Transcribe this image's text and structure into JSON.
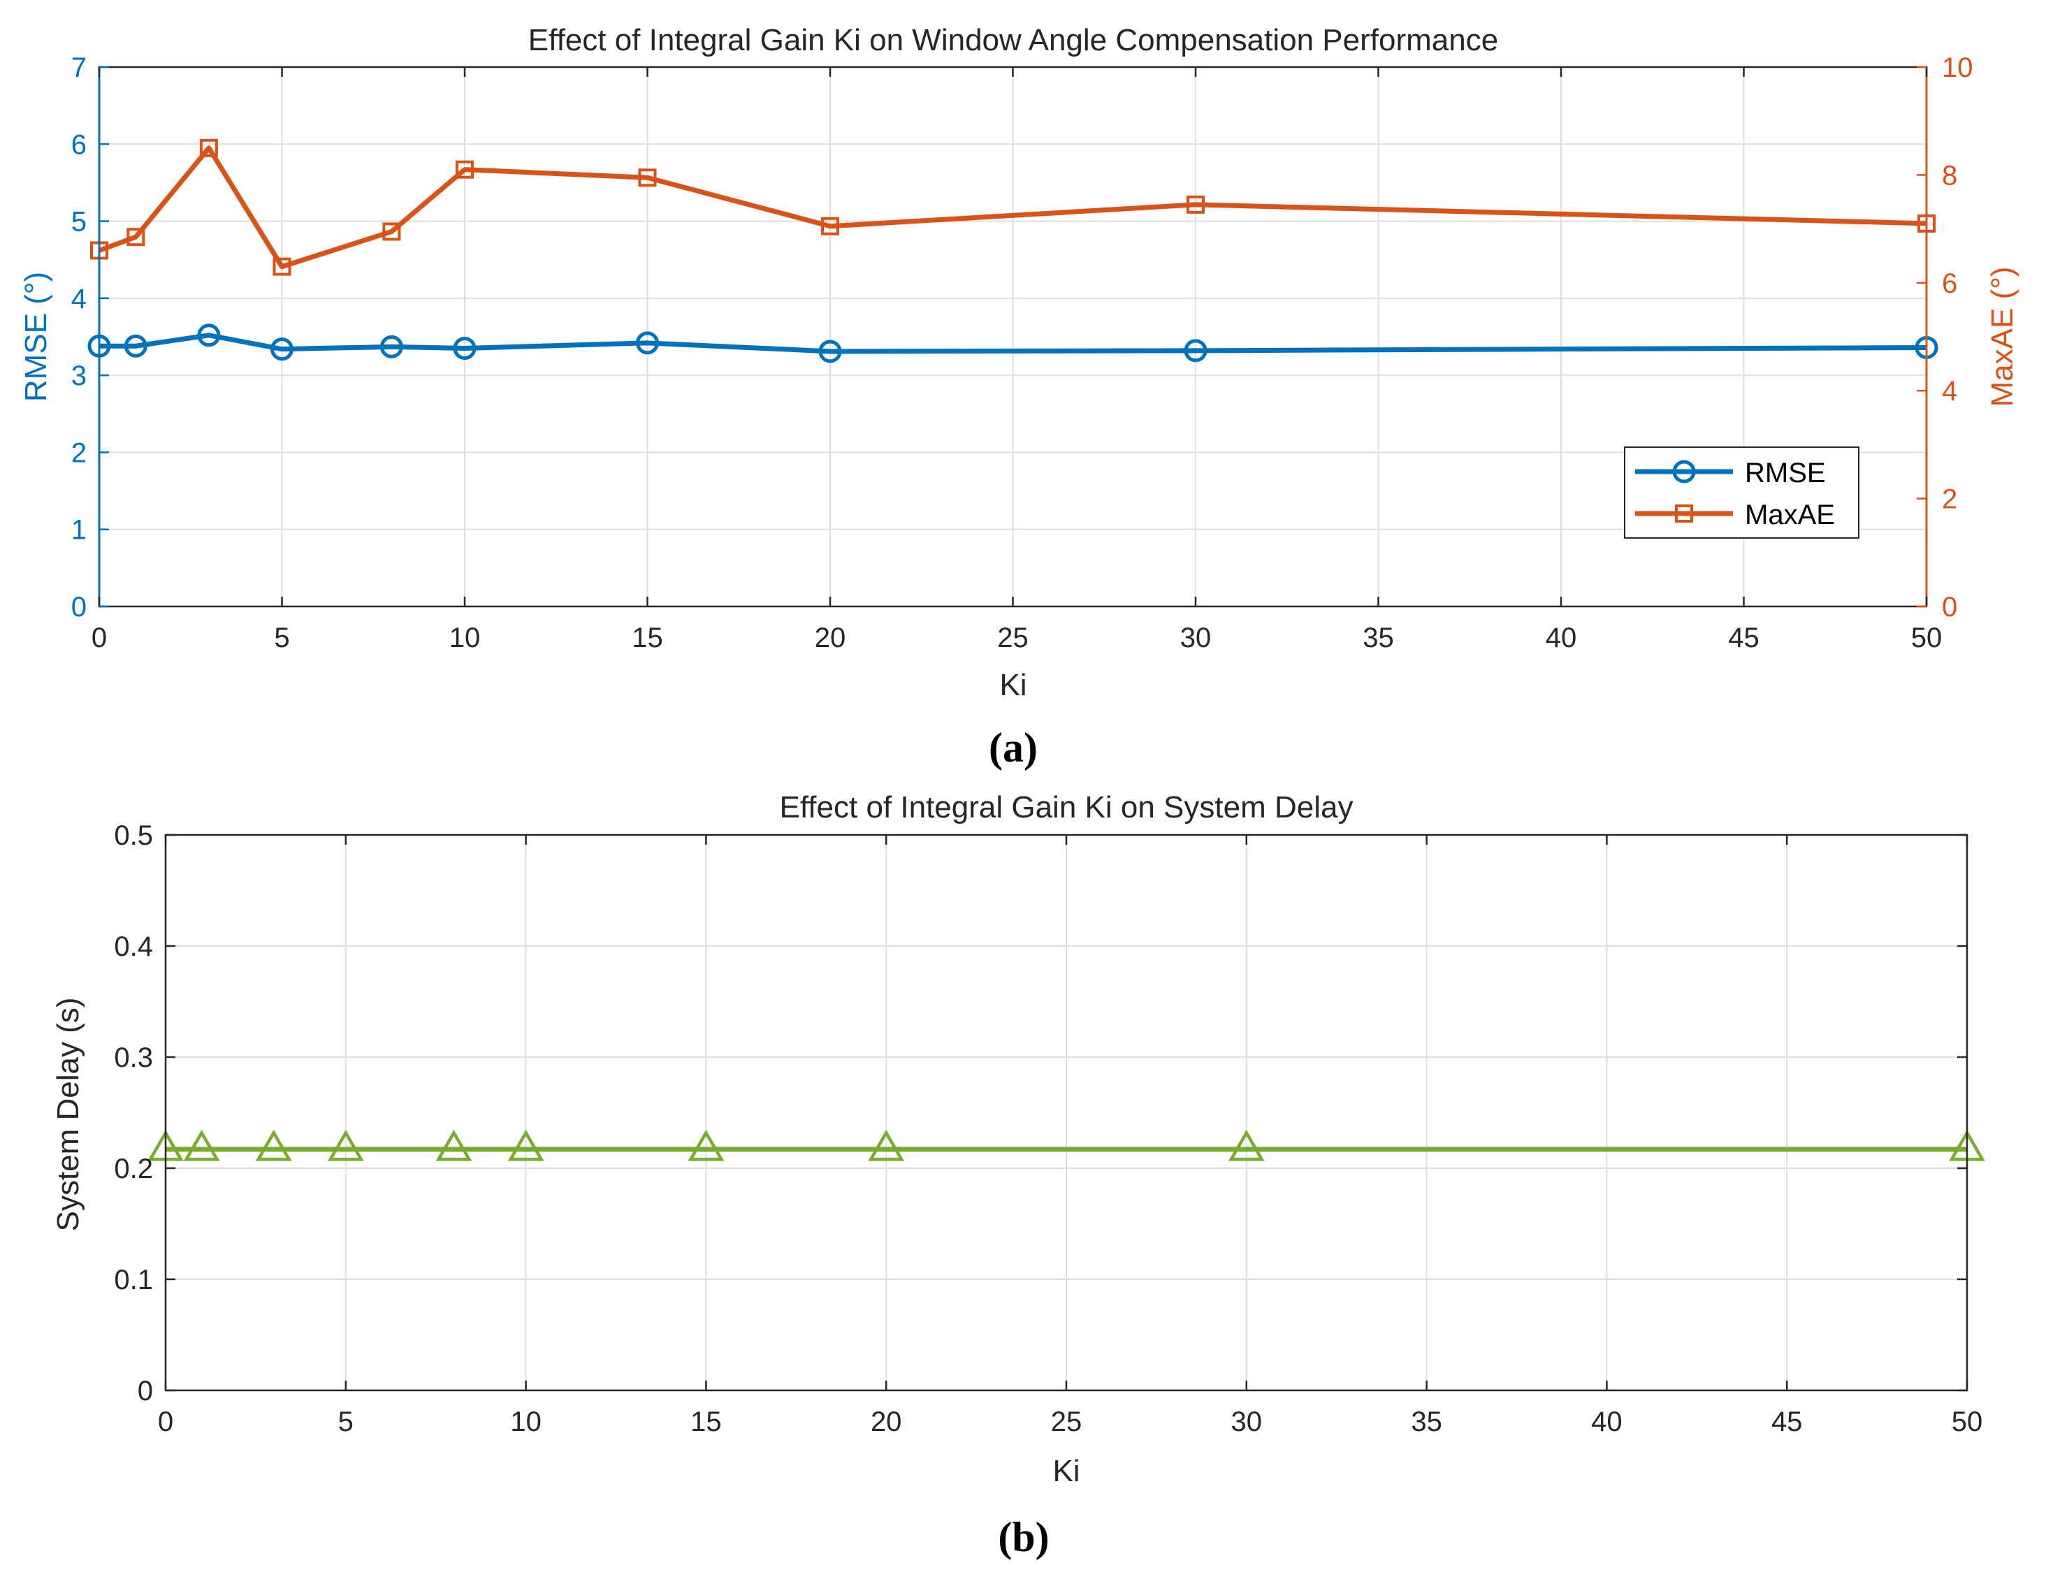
{
  "colors": {
    "rmse": "#0072BD",
    "maxae": "#D95319",
    "delay": "#77AC30",
    "axis": "#262626",
    "grid": "#dfdfdf"
  },
  "chart_data": [
    {
      "id": "a",
      "caption": "(a)",
      "type": "line",
      "title": "Effect of Integral Gain Ki on Window Angle Compensation Performance",
      "xlabel": "Ki",
      "ylabel": "RMSE (°)",
      "y2label": "MaxAE (°)",
      "xlim": [
        0,
        50
      ],
      "ylim": [
        0,
        7
      ],
      "y2lim": [
        0,
        10
      ],
      "xticks": [
        "0",
        "5",
        "10",
        "15",
        "20",
        "25",
        "30",
        "35",
        "40",
        "45",
        "50"
      ],
      "yticks": [
        "0",
        "1",
        "2",
        "3",
        "4",
        "5",
        "6",
        "7"
      ],
      "y2ticks": [
        "0",
        "2",
        "4",
        "6",
        "8",
        "10"
      ],
      "grid": true,
      "legend_location": "bottom-right",
      "series": [
        {
          "name": "RMSE",
          "axis": "left",
          "marker": "circle",
          "x": [
            0,
            1,
            3,
            5,
            8,
            10,
            15,
            20,
            30,
            50
          ],
          "y": [
            3.38,
            3.38,
            3.52,
            3.34,
            3.37,
            3.35,
            3.42,
            3.31,
            3.32,
            3.36
          ]
        },
        {
          "name": "MaxAE",
          "axis": "right",
          "marker": "square",
          "x": [
            0,
            1,
            3,
            5,
            8,
            10,
            15,
            20,
            30,
            50
          ],
          "y": [
            6.6,
            6.85,
            8.5,
            6.3,
            6.95,
            8.1,
            7.95,
            7.05,
            7.45,
            7.1
          ]
        }
      ]
    },
    {
      "id": "b",
      "caption": "(b)",
      "type": "line",
      "title": "Effect of Integral Gain Ki on System Delay",
      "xlabel": "Ki",
      "ylabel": "System Delay  (s)",
      "xlim": [
        0,
        50
      ],
      "ylim": [
        0,
        0.5
      ],
      "xticks": [
        "0",
        "5",
        "10",
        "15",
        "20",
        "25",
        "30",
        "35",
        "40",
        "45",
        "50"
      ],
      "yticks": [
        "0",
        "0.1",
        "0.2",
        "0.3",
        "0.4",
        "0.5"
      ],
      "grid": true,
      "series": [
        {
          "name": "System Delay",
          "axis": "left",
          "marker": "triangle",
          "x": [
            0,
            1,
            3,
            5,
            8,
            10,
            15,
            20,
            30,
            50
          ],
          "y": [
            0.217,
            0.217,
            0.217,
            0.217,
            0.217,
            0.217,
            0.217,
            0.217,
            0.217,
            0.217
          ]
        }
      ]
    }
  ]
}
